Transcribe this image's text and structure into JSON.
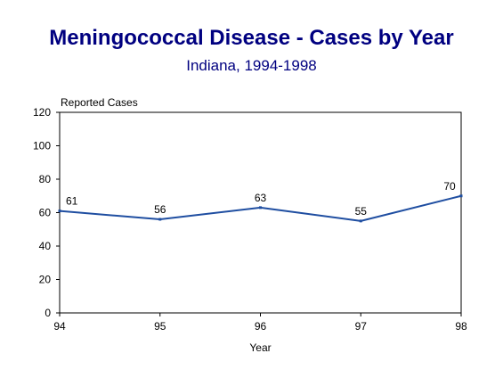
{
  "chart_data": {
    "type": "line",
    "title": "Meningococcal Disease - Cases by Year",
    "subtitle": "Indiana, 1994-1998",
    "xlabel": "Year",
    "ylabel": "Reported Cases",
    "categories": [
      "94",
      "95",
      "96",
      "97",
      "98"
    ],
    "series": [
      {
        "values": [
          61,
          56,
          63,
          55,
          70
        ],
        "color": "#1f4ea1"
      }
    ],
    "data_labels": [
      "61",
      "56",
      "63",
      "55",
      "70"
    ],
    "ylim": [
      0,
      120
    ],
    "yticks": [
      0,
      20,
      40,
      60,
      80,
      100,
      120
    ],
    "grid": false,
    "legend": "none"
  }
}
